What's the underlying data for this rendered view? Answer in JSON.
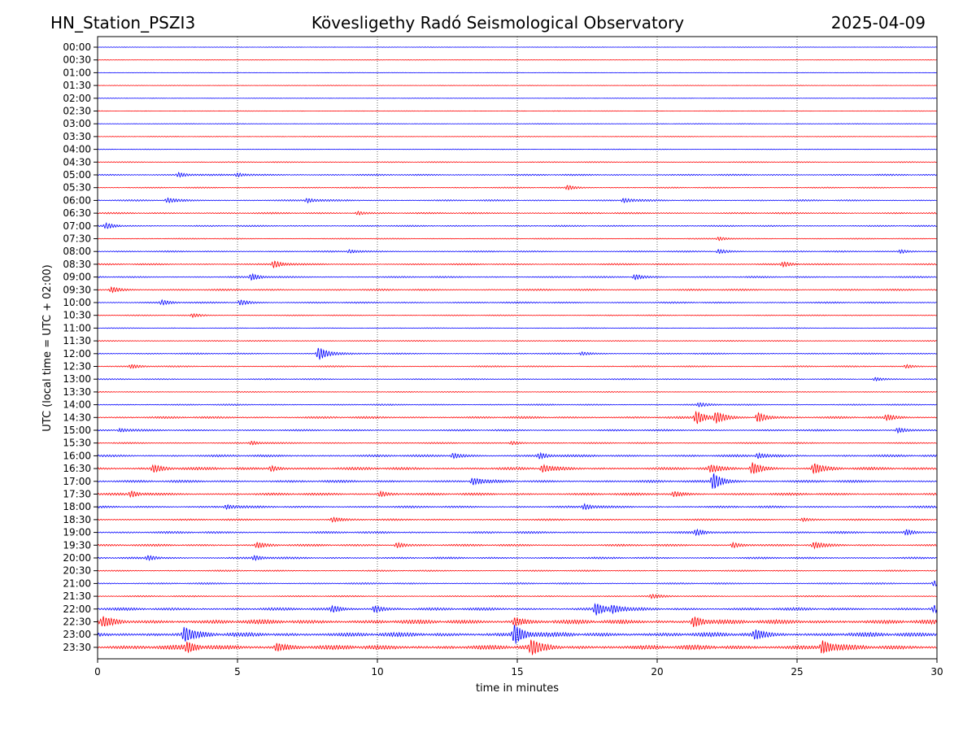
{
  "chart_data": {
    "type": "line",
    "subtype": "helicorder",
    "station": "HN_Station_PSZI3",
    "title": "Kövesligethy Radó Seismological Observatory",
    "date": "2025-04-09",
    "xlabel": "time in minutes",
    "ylabel": "UTC (local time = UTC + 02:00)",
    "xlim": [
      0,
      30
    ],
    "x_ticks": [
      "0",
      "5",
      "10",
      "15",
      "20",
      "25",
      "30"
    ],
    "x_gridlines": [
      5,
      10,
      15,
      20,
      25
    ],
    "trace_colors": [
      "#0000ff",
      "#ff0000"
    ],
    "rows": [
      {
        "label": "00:00",
        "amp": 0.3,
        "events": []
      },
      {
        "label": "00:30",
        "amp": 0.3,
        "events": []
      },
      {
        "label": "01:00",
        "amp": 0.3,
        "events": []
      },
      {
        "label": "01:30",
        "amp": 0.3,
        "events": []
      },
      {
        "label": "02:00",
        "amp": 0.3,
        "events": []
      },
      {
        "label": "02:30",
        "amp": 0.3,
        "events": []
      },
      {
        "label": "03:00",
        "amp": 0.4,
        "events": []
      },
      {
        "label": "03:30",
        "amp": 0.4,
        "events": []
      },
      {
        "label": "04:00",
        "amp": 0.4,
        "events": []
      },
      {
        "label": "04:30",
        "amp": 0.6,
        "events": []
      },
      {
        "label": "05:00",
        "amp": 0.9,
        "events": [
          {
            "t": 2.9,
            "a": 2.5
          },
          {
            "t": 5.0,
            "a": 2.0
          }
        ]
      },
      {
        "label": "05:30",
        "amp": 0.7,
        "events": [
          {
            "t": 16.8,
            "a": 2.5
          }
        ]
      },
      {
        "label": "06:00",
        "amp": 0.9,
        "events": [
          {
            "t": 2.5,
            "a": 2.5
          },
          {
            "t": 7.5,
            "a": 2.5
          },
          {
            "t": 18.8,
            "a": 2.5
          }
        ]
      },
      {
        "label": "06:30",
        "amp": 0.9,
        "events": [
          {
            "t": 9.3,
            "a": 2.0
          }
        ]
      },
      {
        "label": "07:00",
        "amp": 0.8,
        "events": [
          {
            "t": 0.3,
            "a": 3.0
          }
        ]
      },
      {
        "label": "07:30",
        "amp": 0.6,
        "events": [
          {
            "t": 22.2,
            "a": 2.0
          }
        ]
      },
      {
        "label": "08:00",
        "amp": 0.8,
        "events": [
          {
            "t": 9.0,
            "a": 2.0
          },
          {
            "t": 22.2,
            "a": 2.5
          },
          {
            "t": 28.7,
            "a": 2.0
          }
        ]
      },
      {
        "label": "08:30",
        "amp": 0.9,
        "events": [
          {
            "t": 6.3,
            "a": 4.0
          },
          {
            "t": 24.5,
            "a": 2.5
          }
        ]
      },
      {
        "label": "09:00",
        "amp": 0.9,
        "events": [
          {
            "t": 5.5,
            "a": 3.5
          },
          {
            "t": 19.2,
            "a": 3.0
          }
        ]
      },
      {
        "label": "09:30",
        "amp": 1.0,
        "events": [
          {
            "t": 0.5,
            "a": 3.0
          }
        ]
      },
      {
        "label": "10:00",
        "amp": 0.9,
        "events": [
          {
            "t": 2.3,
            "a": 2.5
          },
          {
            "t": 5.1,
            "a": 3.0
          }
        ]
      },
      {
        "label": "10:30",
        "amp": 0.6,
        "events": [
          {
            "t": 3.4,
            "a": 2.0
          }
        ]
      },
      {
        "label": "11:00",
        "amp": 0.5,
        "events": []
      },
      {
        "label": "11:30",
        "amp": 0.6,
        "events": []
      },
      {
        "label": "12:00",
        "amp": 0.8,
        "events": [
          {
            "t": 7.9,
            "a": 8.0
          },
          {
            "t": 17.3,
            "a": 2.0
          }
        ]
      },
      {
        "label": "12:30",
        "amp": 0.8,
        "events": [
          {
            "t": 1.2,
            "a": 2.0
          },
          {
            "t": 28.9,
            "a": 2.0
          }
        ]
      },
      {
        "label": "13:00",
        "amp": 0.7,
        "events": [
          {
            "t": 27.8,
            "a": 2.0
          }
        ]
      },
      {
        "label": "13:30",
        "amp": 0.5,
        "events": []
      },
      {
        "label": "14:00",
        "amp": 0.8,
        "events": [
          {
            "t": 21.5,
            "a": 2.0
          }
        ]
      },
      {
        "label": "14:30",
        "amp": 1.2,
        "events": [
          {
            "t": 21.4,
            "a": 8.0
          },
          {
            "t": 22.1,
            "a": 6.0
          },
          {
            "t": 23.6,
            "a": 6.0
          },
          {
            "t": 28.2,
            "a": 3.0
          }
        ]
      },
      {
        "label": "15:00",
        "amp": 1.0,
        "events": [
          {
            "t": 0.8,
            "a": 2.0
          },
          {
            "t": 28.6,
            "a": 3.0
          }
        ]
      },
      {
        "label": "15:30",
        "amp": 0.8,
        "events": [
          {
            "t": 5.5,
            "a": 2.0
          },
          {
            "t": 14.8,
            "a": 2.0
          }
        ]
      },
      {
        "label": "16:00",
        "amp": 1.3,
        "events": [
          {
            "t": 12.7,
            "a": 3.0
          },
          {
            "t": 15.8,
            "a": 3.0
          },
          {
            "t": 23.6,
            "a": 3.0
          }
        ]
      },
      {
        "label": "16:30",
        "amp": 1.6,
        "events": [
          {
            "t": 2.0,
            "a": 4.0
          },
          {
            "t": 6.2,
            "a": 3.0
          },
          {
            "t": 15.9,
            "a": 4.0
          },
          {
            "t": 21.9,
            "a": 3.5
          },
          {
            "t": 23.4,
            "a": 7.0
          },
          {
            "t": 25.6,
            "a": 6.0
          }
        ]
      },
      {
        "label": "17:00",
        "amp": 1.4,
        "events": [
          {
            "t": 13.4,
            "a": 4.0
          },
          {
            "t": 22.0,
            "a": 10.0
          }
        ]
      },
      {
        "label": "17:30",
        "amp": 1.4,
        "events": [
          {
            "t": 1.2,
            "a": 3.0
          },
          {
            "t": 10.1,
            "a": 3.0
          },
          {
            "t": 20.6,
            "a": 2.5
          }
        ]
      },
      {
        "label": "18:00",
        "amp": 1.2,
        "events": [
          {
            "t": 4.6,
            "a": 2.5
          },
          {
            "t": 17.4,
            "a": 3.0
          }
        ]
      },
      {
        "label": "18:30",
        "amp": 1.0,
        "events": [
          {
            "t": 8.4,
            "a": 2.5
          },
          {
            "t": 25.2,
            "a": 2.0
          }
        ]
      },
      {
        "label": "19:00",
        "amp": 1.2,
        "events": [
          {
            "t": 21.4,
            "a": 3.0
          },
          {
            "t": 28.9,
            "a": 3.0
          }
        ]
      },
      {
        "label": "19:30",
        "amp": 1.2,
        "events": [
          {
            "t": 5.7,
            "a": 3.0
          },
          {
            "t": 10.7,
            "a": 3.0
          },
          {
            "t": 22.7,
            "a": 3.0
          },
          {
            "t": 25.6,
            "a": 3.0
          }
        ]
      },
      {
        "label": "20:00",
        "amp": 1.1,
        "events": [
          {
            "t": 1.8,
            "a": 2.5
          },
          {
            "t": 5.6,
            "a": 2.5
          }
        ]
      },
      {
        "label": "20:30",
        "amp": 0.8,
        "events": []
      },
      {
        "label": "21:00",
        "amp": 0.9,
        "events": [
          {
            "t": 29.9,
            "a": 3.0
          }
        ]
      },
      {
        "label": "21:30",
        "amp": 0.8,
        "events": [
          {
            "t": 19.8,
            "a": 2.0
          }
        ]
      },
      {
        "label": "22:00",
        "amp": 1.6,
        "events": [
          {
            "t": 8.4,
            "a": 3.0
          },
          {
            "t": 9.9,
            "a": 4.0
          },
          {
            "t": 17.8,
            "a": 7.0
          },
          {
            "t": 18.4,
            "a": 4.0
          },
          {
            "t": 29.9,
            "a": 4.0
          }
        ]
      },
      {
        "label": "22:30",
        "amp": 2.4,
        "events": [
          {
            "t": 0.2,
            "a": 4.5
          },
          {
            "t": 14.9,
            "a": 4.5
          },
          {
            "t": 21.3,
            "a": 6.0
          }
        ]
      },
      {
        "label": "23:00",
        "amp": 2.4,
        "events": [
          {
            "t": 3.1,
            "a": 8.0
          },
          {
            "t": 14.9,
            "a": 11.0
          },
          {
            "t": 23.5,
            "a": 5.0
          }
        ]
      },
      {
        "label": "23:30",
        "amp": 2.6,
        "events": [
          {
            "t": 3.2,
            "a": 5.0
          },
          {
            "t": 6.4,
            "a": 4.5
          },
          {
            "t": 15.5,
            "a": 8.0
          },
          {
            "t": 25.9,
            "a": 8.0
          }
        ]
      }
    ]
  }
}
